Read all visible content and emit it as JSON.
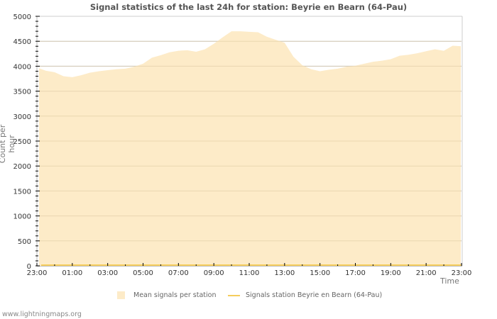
{
  "chart_data": {
    "type": "area",
    "title": "Signal statistics of the last 24h for station: Beyrie en Bearn (64-Pau)",
    "xlabel": "Time",
    "ylabel": "Count per hour",
    "ylim": [
      0,
      5000
    ],
    "yticks": [
      0,
      500,
      1000,
      1500,
      2000,
      2500,
      3000,
      3500,
      4000,
      4500,
      5000
    ],
    "xtick_labels": [
      "23:00",
      "01:00",
      "03:00",
      "05:00",
      "07:00",
      "09:00",
      "11:00",
      "13:00",
      "15:00",
      "17:00",
      "19:00",
      "21:00",
      "23:00"
    ],
    "grid": true,
    "legend_position": "bottom",
    "x": [
      "23:00",
      "23:30",
      "00:00",
      "00:30",
      "01:00",
      "01:30",
      "02:00",
      "02:30",
      "03:00",
      "03:30",
      "04:00",
      "04:30",
      "05:00",
      "05:30",
      "06:00",
      "06:30",
      "07:00",
      "07:30",
      "08:00",
      "08:30",
      "09:00",
      "09:30",
      "10:00",
      "10:30",
      "11:00",
      "11:30",
      "12:00",
      "12:30",
      "13:00",
      "13:30",
      "14:00",
      "14:30",
      "15:00",
      "15:30",
      "16:00",
      "16:30",
      "17:00",
      "17:30",
      "18:00",
      "18:30",
      "19:00",
      "19:30",
      "20:00",
      "20:30",
      "21:00",
      "21:30",
      "22:00",
      "22:30",
      "23:00"
    ],
    "series": [
      {
        "name": "Mean signals per station",
        "style": "area",
        "color": "#fdebc8",
        "values": [
          3960,
          3910,
          3880,
          3800,
          3780,
          3820,
          3870,
          3900,
          3920,
          3940,
          3950,
          3990,
          4050,
          4170,
          4220,
          4280,
          4310,
          4320,
          4290,
          4340,
          4450,
          4580,
          4700,
          4700,
          4690,
          4680,
          4590,
          4530,
          4470,
          4190,
          4020,
          3940,
          3900,
          3930,
          3950,
          3990,
          4010,
          4050,
          4090,
          4110,
          4140,
          4210,
          4230,
          4260,
          4300,
          4340,
          4310,
          4410,
          4400
        ]
      },
      {
        "name": "Signals station Beyrie en Bearn (64-Pau)",
        "style": "line",
        "color": "#f5cd5c",
        "values": [
          0,
          0,
          0,
          0,
          0,
          0,
          0,
          0,
          0,
          0,
          0,
          0,
          0,
          0,
          0,
          0,
          0,
          0,
          0,
          0,
          0,
          0,
          0,
          0,
          0,
          0,
          0,
          0,
          0,
          0,
          0,
          0,
          0,
          0,
          0,
          0,
          0,
          0,
          0,
          0,
          0,
          0,
          0,
          0,
          0,
          0,
          0,
          0,
          0
        ]
      }
    ]
  },
  "legend": {
    "mean_label": "Mean signals per station",
    "station_label": "Signals station Beyrie en Bearn (64-Pau)"
  },
  "footer": "www.lightningmaps.org"
}
